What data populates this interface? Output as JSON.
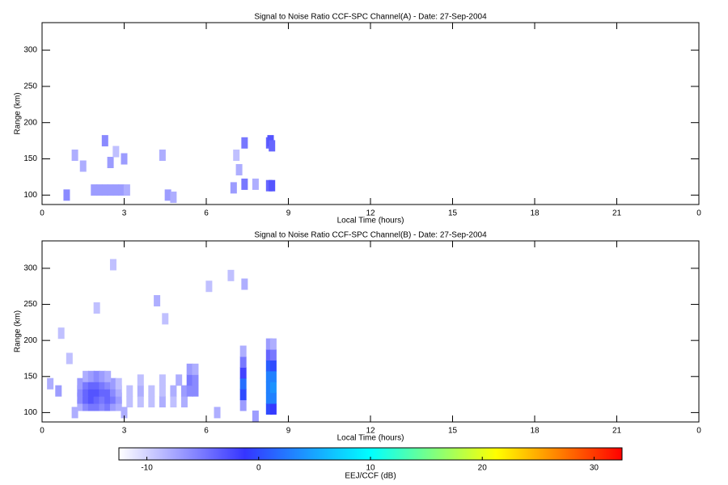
{
  "chart_data": [
    {
      "type": "heatmap",
      "title": "Signal to Noise Ratio CCF-SPC Channel(A) - Date: 27-Sep-2004",
      "x_label": "Local Time (hours)",
      "y_label": "Range (km)",
      "xlim": [
        0,
        24
      ],
      "xticks": [
        0,
        3,
        6,
        9,
        12,
        15,
        18,
        21,
        {
          "value": 24,
          "label": "0"
        }
      ],
      "ylim": [
        87,
        338
      ],
      "yticks": [
        100,
        150,
        200,
        250,
        300
      ],
      "x": [
        1.9,
        2.1,
        2.3,
        2.5,
        2.7,
        2.9,
        3.1,
        0.9,
        1.2,
        1.5,
        2.3,
        2.5,
        2.7,
        3.0,
        4.4,
        4.6,
        4.8,
        7.0,
        7.2,
        7.4,
        7.4,
        7.8,
        8.3,
        8.35,
        8.3,
        8.4,
        8.4,
        7.1
      ],
      "y": [
        107,
        107,
        107,
        107,
        107,
        107,
        107,
        100,
        155,
        140,
        175,
        145,
        160,
        150,
        155,
        100,
        97,
        110,
        135,
        172,
        115,
        115,
        172,
        175,
        113,
        113,
        168,
        155
      ],
      "values": [
        -7,
        -7,
        -7,
        -7,
        -7,
        -7,
        -8,
        -6,
        -8,
        -8,
        -6,
        -7,
        -9,
        -7,
        -8,
        -7,
        -8,
        -7,
        -8,
        -5,
        -5,
        -8,
        -4,
        -3,
        -4,
        -3,
        -4,
        -9
      ]
    },
    {
      "type": "heatmap",
      "title": "Signal to Noise Ratio CCF-SPC Channel(B) - Date: 27-Sep-2004",
      "x_label": "Local Time (hours)",
      "y_label": "Range (km)",
      "xlim": [
        0,
        24
      ],
      "xticks": [
        0,
        3,
        6,
        9,
        12,
        15,
        18,
        21,
        {
          "value": 24,
          "label": "0"
        }
      ],
      "ylim": [
        87,
        338
      ],
      "yticks": [
        100,
        150,
        200,
        250,
        300
      ],
      "x": [
        1.4,
        1.6,
        1.8,
        2.0,
        2.2,
        2.4,
        2.6,
        2.8,
        1.4,
        1.6,
        1.8,
        2.0,
        2.2,
        2.4,
        2.6,
        2.8,
        1.4,
        1.6,
        1.8,
        2.0,
        2.2,
        2.4,
        2.6,
        2.8,
        1.4,
        1.6,
        1.8,
        2.0,
        2.2,
        2.4,
        2.6,
        2.8,
        1.6,
        1.8,
        2.0,
        2.2,
        2.4,
        3.2,
        3.6,
        4.0,
        4.4,
        4.8,
        5.2,
        3.2,
        3.6,
        4.0,
        4.4,
        4.8,
        5.2,
        3.6,
        4.4,
        5.0,
        5.4,
        5.6,
        5.4,
        5.6,
        5.4,
        5.6,
        7.35,
        7.35,
        7.35,
        7.35,
        7.35,
        7.35,
        8.3,
        8.3,
        8.3,
        8.3,
        8.3,
        8.3,
        8.3,
        8.45,
        8.45,
        8.45,
        8.45,
        8.45,
        8.45,
        8.45,
        0.3,
        0.6,
        0.7,
        1.0,
        2.0,
        2.6,
        4.2,
        4.5,
        6.1,
        6.9,
        7.4,
        1.2,
        3.0,
        6.4,
        7.8
      ],
      "y": [
        110,
        110,
        110,
        110,
        110,
        110,
        110,
        110,
        120,
        120,
        120,
        120,
        120,
        120,
        120,
        120,
        130,
        130,
        130,
        130,
        130,
        130,
        130,
        130,
        140,
        140,
        140,
        140,
        140,
        140,
        140,
        140,
        150,
        150,
        150,
        150,
        150,
        115,
        115,
        115,
        115,
        115,
        115,
        130,
        130,
        130,
        130,
        130,
        130,
        145,
        145,
        145,
        130,
        130,
        145,
        145,
        160,
        160,
        110,
        125,
        140,
        155,
        170,
        185,
        105,
        120,
        135,
        150,
        165,
        180,
        195,
        105,
        120,
        135,
        150,
        165,
        180,
        195,
        140,
        130,
        210,
        175,
        245,
        305,
        255,
        230,
        275,
        290,
        278,
        100,
        100,
        100,
        95
      ],
      "values": [
        -8,
        -6,
        -5,
        -5,
        -6,
        -5,
        -7,
        -8,
        -6,
        -4,
        -3,
        -4,
        -5,
        -4,
        -5,
        -7,
        -6,
        -4,
        -3,
        -3,
        -4,
        -4,
        -6,
        -8,
        -7,
        -5,
        -4,
        -4,
        -5,
        -6,
        -7,
        -9,
        -8,
        -7,
        -6,
        -7,
        -8,
        -9,
        -9,
        -9,
        -8,
        -9,
        -8,
        -9,
        -8,
        -9,
        -9,
        -8,
        -7,
        -9,
        -9,
        -8,
        -6,
        -6,
        -5,
        -6,
        -7,
        -8,
        -7,
        0,
        2,
        -2,
        -5,
        -8,
        0,
        3,
        3,
        3,
        1,
        -4,
        -7,
        -1,
        3,
        4,
        3,
        0,
        -5,
        -8,
        -8,
        -7,
        -9,
        -9,
        -9,
        -9,
        -8,
        -9,
        -9,
        -9,
        -8,
        -8,
        -8,
        -8,
        -7
      ]
    },
    {
      "type": "colorbar",
      "label": "EEJ/CCF (dB)",
      "xlim": [
        -12.5,
        32.5
      ],
      "xticks": [
        -10,
        0,
        10,
        20,
        30
      ],
      "colors": [
        "#ffffff",
        "#3535ff",
        "#00ffff",
        "#ffff00",
        "#ff0000"
      ]
    }
  ]
}
